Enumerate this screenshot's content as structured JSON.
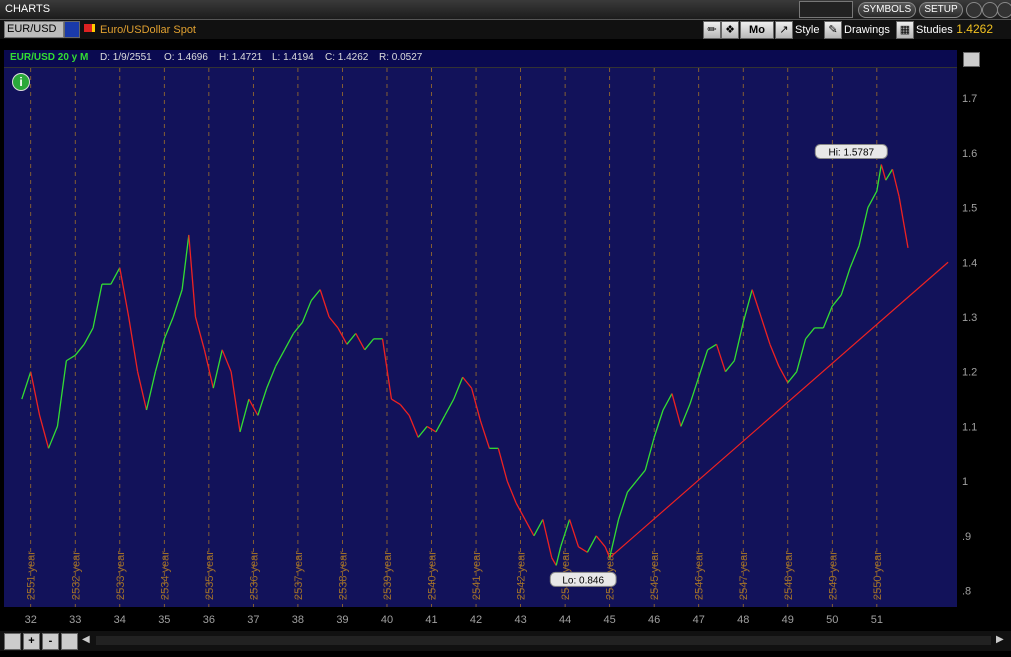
{
  "window": {
    "title": "CHARTS"
  },
  "header_buttons": {
    "symbols": "SYMBOLS",
    "setup": "SETUP"
  },
  "toolbar": {
    "symbol": "EUR/USD",
    "description": "Euro/USDollar Spot",
    "period": "Mo",
    "style": "Style",
    "drawings": "Drawings",
    "studies": "Studies",
    "last_price": "1.4262"
  },
  "chart_header": {
    "label": "EUR/USD 20 y M",
    "date": "D: 1/9/2551",
    "open": "O: 1.4696",
    "high": "H: 1.4721",
    "low": "L: 1.4194",
    "close": "C: 1.4262",
    "range": "R: 0.0527"
  },
  "colors": {
    "background": "#12125a",
    "up": "#33dd33",
    "down": "#ee2222",
    "grid": "#a0702a",
    "trendline": "#ee2222",
    "axis_text": "#a0a0a0"
  },
  "chart_data": {
    "type": "line",
    "symbol": "EUR/USD",
    "ylim": [
      0.8,
      1.7
    ],
    "y_ticks": [
      "1.7",
      "1.6",
      "1.5",
      "1.4",
      "1.3",
      "1.2",
      "1.1",
      "1",
      ".9",
      ".8"
    ],
    "x_ticks": [
      "32",
      "33",
      "34",
      "35",
      "36",
      "37",
      "38",
      "39",
      "40",
      "41",
      "42",
      "43",
      "44",
      "45",
      "46",
      "47",
      "48",
      "49",
      "50",
      "51"
    ],
    "year_labels": [
      "2551 year",
      "2532 year",
      "2533 year",
      "2534 year",
      "2535 year",
      "2536 year",
      "2537 year",
      "2538 year",
      "2539 year",
      "2540 year",
      "2541 year",
      "2542 year",
      "2543 year",
      "2544 year",
      "2545 year",
      "2546 year",
      "2547 year",
      "2548 year",
      "2549 year",
      "2550 year"
    ],
    "annotations": {
      "high_label": "Hi: 1.5787",
      "low_label": "Lo: 0.846"
    },
    "series": [
      {
        "values": [
          [
            31.8,
            1.15
          ],
          [
            32.0,
            1.2
          ],
          [
            32.2,
            1.12
          ],
          [
            32.4,
            1.06
          ],
          [
            32.6,
            1.1
          ],
          [
            32.8,
            1.22
          ],
          [
            33.0,
            1.23
          ],
          [
            33.2,
            1.25
          ],
          [
            33.4,
            1.28
          ],
          [
            33.6,
            1.36
          ],
          [
            33.8,
            1.36
          ],
          [
            34.0,
            1.39
          ],
          [
            34.2,
            1.3
          ],
          [
            34.4,
            1.2
          ],
          [
            34.6,
            1.13
          ],
          [
            34.8,
            1.2
          ],
          [
            35.0,
            1.26
          ],
          [
            35.2,
            1.3
          ],
          [
            35.4,
            1.35
          ],
          [
            35.55,
            1.45
          ],
          [
            35.7,
            1.3
          ],
          [
            35.9,
            1.24
          ],
          [
            36.1,
            1.17
          ],
          [
            36.3,
            1.24
          ],
          [
            36.5,
            1.2
          ],
          [
            36.7,
            1.09
          ],
          [
            36.9,
            1.15
          ],
          [
            37.1,
            1.12
          ],
          [
            37.3,
            1.17
          ],
          [
            37.5,
            1.21
          ],
          [
            37.7,
            1.24
          ],
          [
            37.9,
            1.27
          ],
          [
            38.1,
            1.29
          ],
          [
            38.3,
            1.33
          ],
          [
            38.5,
            1.35
          ],
          [
            38.7,
            1.3
          ],
          [
            38.9,
            1.28
          ],
          [
            39.1,
            1.25
          ],
          [
            39.3,
            1.27
          ],
          [
            39.5,
            1.24
          ],
          [
            39.7,
            1.26
          ],
          [
            39.9,
            1.26
          ],
          [
            40.1,
            1.15
          ],
          [
            40.3,
            1.14
          ],
          [
            40.5,
            1.12
          ],
          [
            40.7,
            1.08
          ],
          [
            40.9,
            1.1
          ],
          [
            41.1,
            1.09
          ],
          [
            41.3,
            1.12
          ],
          [
            41.5,
            1.15
          ],
          [
            41.7,
            1.19
          ],
          [
            41.9,
            1.17
          ],
          [
            42.1,
            1.11
          ],
          [
            42.3,
            1.06
          ],
          [
            42.5,
            1.06
          ],
          [
            42.7,
            1.0
          ],
          [
            42.9,
            0.96
          ],
          [
            43.1,
            0.93
          ],
          [
            43.3,
            0.9
          ],
          [
            43.5,
            0.93
          ],
          [
            43.7,
            0.86
          ],
          [
            43.8,
            0.846
          ],
          [
            43.9,
            0.88
          ],
          [
            44.1,
            0.93
          ],
          [
            44.3,
            0.88
          ],
          [
            44.5,
            0.87
          ],
          [
            44.7,
            0.9
          ],
          [
            44.9,
            0.88
          ],
          [
            45.0,
            0.86
          ],
          [
            45.2,
            0.93
          ],
          [
            45.4,
            0.98
          ],
          [
            45.6,
            1.0
          ],
          [
            45.8,
            1.02
          ],
          [
            46.0,
            1.08
          ],
          [
            46.2,
            1.13
          ],
          [
            46.4,
            1.16
          ],
          [
            46.6,
            1.1
          ],
          [
            46.8,
            1.14
          ],
          [
            47.0,
            1.19
          ],
          [
            47.2,
            1.24
          ],
          [
            47.4,
            1.25
          ],
          [
            47.6,
            1.2
          ],
          [
            47.8,
            1.22
          ],
          [
            48.0,
            1.29
          ],
          [
            48.2,
            1.35
          ],
          [
            48.4,
            1.3
          ],
          [
            48.6,
            1.25
          ],
          [
            48.8,
            1.21
          ],
          [
            49.0,
            1.18
          ],
          [
            49.2,
            1.2
          ],
          [
            49.4,
            1.26
          ],
          [
            49.6,
            1.28
          ],
          [
            49.8,
            1.28
          ],
          [
            50.0,
            1.32
          ],
          [
            50.2,
            1.34
          ],
          [
            50.4,
            1.39
          ],
          [
            50.6,
            1.43
          ],
          [
            50.8,
            1.5
          ],
          [
            51.0,
            1.53
          ],
          [
            51.1,
            1.5787
          ],
          [
            51.2,
            1.55
          ],
          [
            51.35,
            1.57
          ],
          [
            51.5,
            1.52
          ],
          [
            51.7,
            1.4262
          ]
        ]
      }
    ],
    "trendline": [
      [
        45.0,
        0.86
      ],
      [
        52.6,
        1.4
      ]
    ]
  },
  "scroll": {
    "zoom_in": "+",
    "zoom_out": "-"
  }
}
